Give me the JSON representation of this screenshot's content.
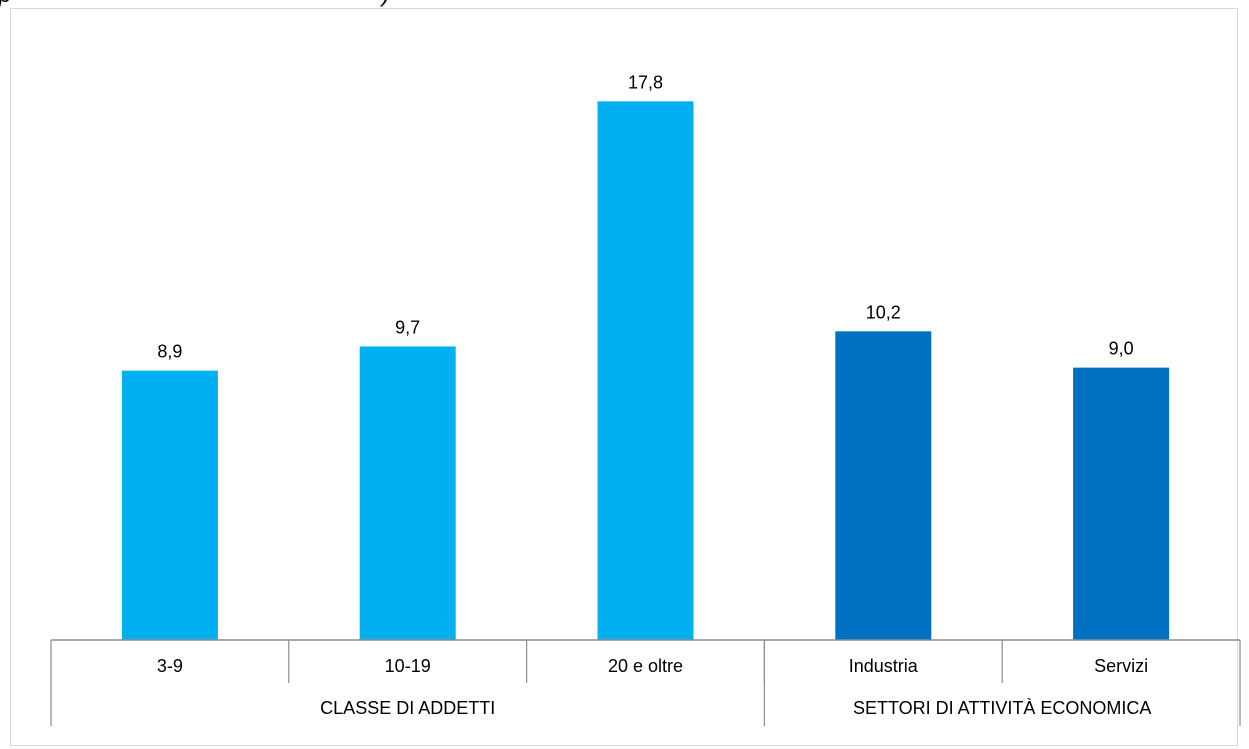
{
  "chart_data": {
    "type": "bar",
    "categories": [
      "3-9",
      "10-19",
      "20 e oltre",
      "Industria",
      "Servizi"
    ],
    "values": [
      8.9,
      9.7,
      17.8,
      10.2,
      9.0
    ],
    "value_labels": [
      "8,9",
      "9,7",
      "17,8",
      "10,2",
      "9,0"
    ],
    "groups": [
      {
        "label": "CLASSE DI ADDETTI",
        "categories": [
          "3-9",
          "10-19",
          "20 e oltre"
        ],
        "color": "#00B0F0"
      },
      {
        "label": "SETTORI DI ATTIVITÀ ECONOMICA",
        "categories": [
          "Industria",
          "Servizi"
        ],
        "color": "#0070C0"
      }
    ],
    "ylim": [
      0,
      19
    ],
    "grid": false,
    "legend": "none"
  },
  "top_fragment": {
    "left": "p",
    "right": ")"
  }
}
